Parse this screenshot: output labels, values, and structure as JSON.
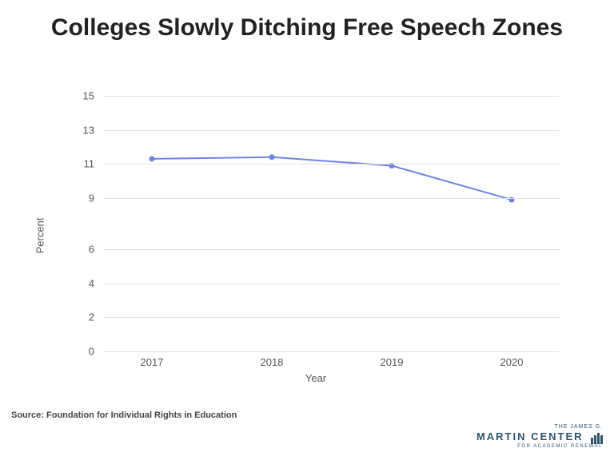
{
  "title": "Colleges Slowly Ditching Free Speech Zones",
  "title_fontsize": 30,
  "title_color": "#222222",
  "chart": {
    "type": "line",
    "background_color": "#ffffff",
    "grid_color": "#e2e2e2",
    "axis_label_color": "#555555",
    "axis_label_fontsize": 13,
    "x": {
      "title": "Year",
      "categories": [
        "2017",
        "2018",
        "2019",
        "2020"
      ]
    },
    "y": {
      "title": "Percent",
      "min": 0,
      "max": 15,
      "ticks": [
        0,
        2,
        4,
        6,
        9,
        11,
        13,
        15
      ]
    },
    "series": {
      "values": [
        11.3,
        11.4,
        10.9,
        8.9
      ],
      "line_color": "#6b84e8",
      "line_width": 2,
      "marker_color": "#6b84e8",
      "marker_radius": 3.5
    }
  },
  "source": "Source: Foundation for Individual Rights in Education",
  "logo": {
    "line1": "THE JAMES G.",
    "line2": "MARTIN CENTER",
    "line3": "FOR ACADEMIC RENEWAL",
    "color": "#2b536e"
  }
}
